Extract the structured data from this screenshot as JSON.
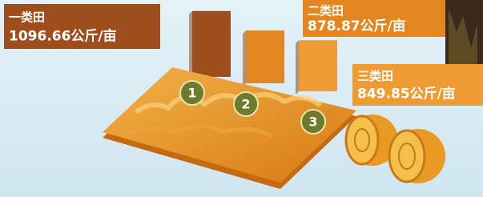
{
  "chart_data": {
    "type": "bar",
    "categories": [
      "一类田",
      "二类田",
      "三类田"
    ],
    "values": [
      1096.66,
      878.87,
      849.85
    ],
    "value_labels": [
      "1096.66公斤/亩",
      "878.87公斤/亩",
      "849.85公斤/亩"
    ],
    "field_numbers": [
      "1",
      "2",
      "3"
    ],
    "colors": [
      "#9e4e1c",
      "#e3861f",
      "#ef9b34"
    ]
  }
}
